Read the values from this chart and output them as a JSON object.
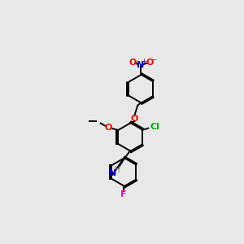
{
  "bg_color": "#e8e8e8",
  "bond_color": "#000000",
  "atom_colors": {
    "O": "#ff0000",
    "N": "#0000cc",
    "Cl": "#00aa00",
    "F": "#ff00cc",
    "H": "#888888"
  },
  "lw": 1.4,
  "figsize": [
    3.0,
    3.0
  ],
  "dpi": 100
}
